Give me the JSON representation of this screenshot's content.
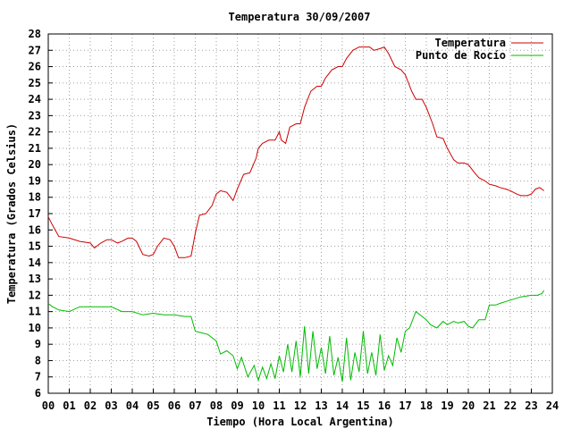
{
  "chart_data": {
    "type": "line",
    "title": "Temperatura 30/09/2007",
    "xlabel": "Tiempo (Hora Local Argentina)",
    "ylabel": "Temperatura (Grados Celsius)",
    "xlim": [
      0,
      24
    ],
    "ylim": [
      6,
      28
    ],
    "grid": true,
    "legend_position": "top-right",
    "x_ticks": [
      "00",
      "01",
      "02",
      "03",
      "04",
      "05",
      "06",
      "07",
      "08",
      "09",
      "10",
      "11",
      "12",
      "13",
      "14",
      "15",
      "16",
      "17",
      "18",
      "19",
      "20",
      "21",
      "22",
      "23",
      "24"
    ],
    "y_ticks": [
      6,
      7,
      8,
      9,
      10,
      11,
      12,
      13,
      14,
      15,
      16,
      17,
      18,
      19,
      20,
      21,
      22,
      23,
      24,
      25,
      26,
      27,
      28
    ],
    "series": [
      {
        "name": "Temperatura",
        "color": "#cc0000",
        "x": [
          0,
          0.2,
          0.5,
          1,
          1.5,
          2,
          2.2,
          2.5,
          2.8,
          3,
          3.3,
          3.5,
          3.8,
          4,
          4.2,
          4.5,
          4.8,
          5,
          5.2,
          5.5,
          5.8,
          6,
          6.2,
          6.5,
          6.8,
          7,
          7.2,
          7.5,
          7.8,
          8,
          8.2,
          8.5,
          8.8,
          9,
          9.3,
          9.6,
          9.9,
          10,
          10.2,
          10.5,
          10.8,
          11,
          11.1,
          11.3,
          11.5,
          11.8,
          12,
          12.2,
          12.5,
          12.8,
          13,
          13.2,
          13.5,
          13.8,
          14,
          14.2,
          14.5,
          14.8,
          15,
          15.3,
          15.5,
          15.8,
          16,
          16.2,
          16.5,
          16.8,
          17,
          17.3,
          17.5,
          17.8,
          18,
          18.3,
          18.5,
          18.8,
          19,
          19.3,
          19.5,
          19.8,
          20,
          20.3,
          20.5,
          20.8,
          21,
          21.3,
          21.5,
          21.8,
          22,
          22.3,
          22.5,
          22.8,
          23,
          23.2,
          23.4,
          23.6
        ],
        "y": [
          16.8,
          16.3,
          15.6,
          15.5,
          15.3,
          15.2,
          14.9,
          15.2,
          15.4,
          15.4,
          15.2,
          15.3,
          15.5,
          15.5,
          15.3,
          14.5,
          14.4,
          14.5,
          15,
          15.5,
          15.4,
          15,
          14.3,
          14.3,
          14.4,
          15.8,
          16.9,
          17,
          17.5,
          18.2,
          18.4,
          18.3,
          17.8,
          18.5,
          19.4,
          19.5,
          20.4,
          21,
          21.3,
          21.5,
          21.5,
          22,
          21.5,
          21.3,
          22.3,
          22.5,
          22.5,
          23.5,
          24.5,
          24.8,
          24.8,
          25.3,
          25.8,
          26,
          26,
          26.5,
          27,
          27.2,
          27.2,
          27.2,
          27,
          27.1,
          27.2,
          26.8,
          26,
          25.8,
          25.5,
          24.5,
          24,
          24,
          23.5,
          22.5,
          21.7,
          21.6,
          21,
          20.3,
          20.1,
          20.1,
          20,
          19.5,
          19.2,
          19,
          18.8,
          18.7,
          18.6,
          18.5,
          18.4,
          18.2,
          18.1,
          18.1,
          18.2,
          18.5,
          18.6,
          18.4
        ]
      },
      {
        "name": "Punto de Rocío",
        "color": "#00bb00",
        "x": [
          0,
          0.2,
          0.5,
          1,
          1.5,
          2,
          2.5,
          3,
          3.5,
          4,
          4.5,
          5,
          5.5,
          6,
          6.5,
          6.8,
          7,
          7.3,
          7.6,
          8,
          8.2,
          8.5,
          8.8,
          9,
          9.2,
          9.5,
          9.8,
          10,
          10.2,
          10.4,
          10.6,
          10.8,
          11,
          11.2,
          11.4,
          11.6,
          11.8,
          12,
          12.2,
          12.4,
          12.6,
          12.8,
          13,
          13.2,
          13.4,
          13.6,
          13.8,
          14,
          14.2,
          14.4,
          14.6,
          14.8,
          15,
          15.2,
          15.4,
          15.6,
          15.8,
          16,
          16.2,
          16.4,
          16.6,
          16.8,
          17,
          17.2,
          17.5,
          17.8,
          18,
          18.2,
          18.5,
          18.8,
          19,
          19.3,
          19.5,
          19.8,
          20,
          20.2,
          20.5,
          20.8,
          21,
          21.3,
          21.5,
          22,
          22.5,
          23,
          23.3,
          23.5,
          23.6
        ],
        "y": [
          11.5,
          11.3,
          11.1,
          11,
          11.3,
          11.3,
          11.3,
          11.3,
          11,
          11,
          10.8,
          10.9,
          10.8,
          10.8,
          10.7,
          10.7,
          9.8,
          9.7,
          9.6,
          9.2,
          8.4,
          8.6,
          8.3,
          7.5,
          8.2,
          7,
          7.7,
          6.8,
          7.6,
          6.9,
          7.8,
          6.9,
          8.3,
          7.3,
          9,
          7.3,
          9.2,
          7,
          10.1,
          7.2,
          9.8,
          7.5,
          8.8,
          7.2,
          9.5,
          7.1,
          8.2,
          6.7,
          9.4,
          6.8,
          8.5,
          7.3,
          9.8,
          7.2,
          8.5,
          7.1,
          9.6,
          7.4,
          8.3,
          7.7,
          9.4,
          8.5,
          9.8,
          10,
          11,
          10.7,
          10.5,
          10.2,
          10,
          10.4,
          10.2,
          10.4,
          10.3,
          10.4,
          10.1,
          10,
          10.5,
          10.5,
          11.4,
          11.4,
          11.5,
          11.7,
          11.9,
          12,
          12,
          12.1,
          12.3
        ]
      }
    ]
  }
}
